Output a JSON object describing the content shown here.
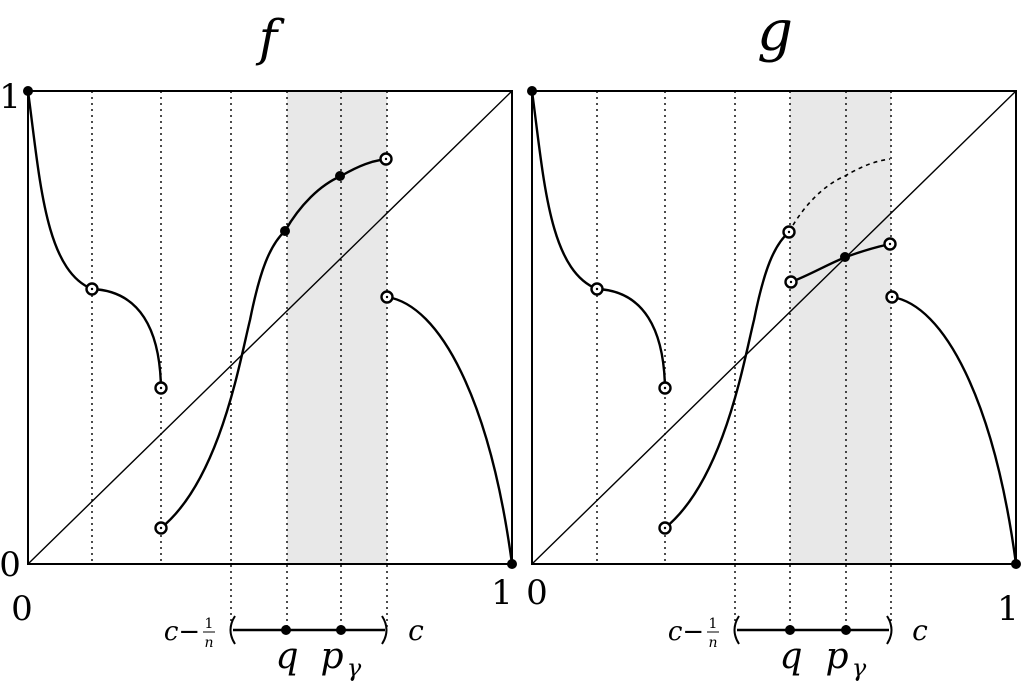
{
  "panels": [
    {
      "id": "f",
      "title": "f",
      "y_top_label": "1",
      "y_bottom_label": "0",
      "x_left_label": "0",
      "x_right_label": "1",
      "interval": {
        "left_label": "c−",
        "frac_num": "1",
        "frac_den": "n",
        "right_label": "c",
        "point_q": "q",
        "point_p": "p",
        "point_p_sub": "γ"
      }
    },
    {
      "id": "g",
      "title": "g",
      "x_left_label": "0",
      "x_right_label": "1",
      "interval": {
        "left_label": "c−",
        "frac_num": "1",
        "frac_den": "n",
        "right_label": "c",
        "point_q": "q",
        "point_p": "p",
        "point_p_sub": "γ"
      }
    }
  ],
  "colors": {
    "stroke": "#000000",
    "shade": "#e8e8e8",
    "background": "#ffffff"
  }
}
